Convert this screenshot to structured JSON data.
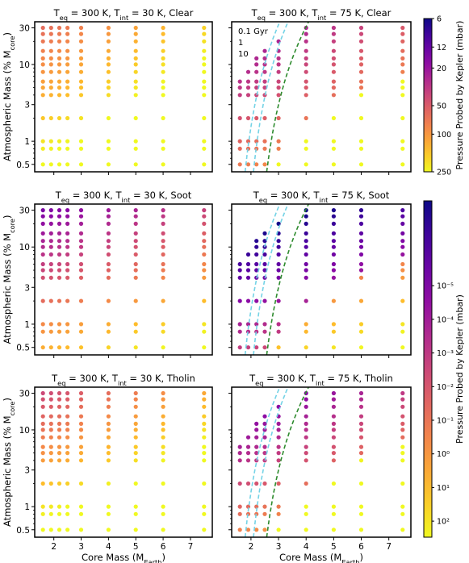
{
  "chart_data": {
    "type": "scatter",
    "xlabel": "Core Mass (M",
    "xlabel_sub": "Earth",
    "xlabel_close": ")",
    "ylabel": "Atmospheric Mass (% M",
    "ylabel_sub": "core",
    "ylabel_close": ")",
    "x_ticks": [
      "2",
      "3",
      "4",
      "5",
      "6",
      "7"
    ],
    "y_ticks": [
      "0.5",
      "1",
      "3",
      "10",
      "30"
    ],
    "xlim": [
      1.3,
      7.8
    ],
    "ylim": [
      0.4,
      36
    ],
    "y_scale": "log",
    "grid": false,
    "core_masses": [
      1.6,
      1.9,
      2.2,
      2.5,
      3.0,
      4.0,
      5.0,
      6.0,
      7.5
    ],
    "atm_masses": [
      0.5,
      0.8,
      1.0,
      2.0,
      4.0,
      5.0,
      6.0,
      8.0,
      10.0,
      12.0,
      15.0,
      20.0,
      25.0,
      30.0
    ],
    "panels": [
      {
        "title_prefix": "T",
        "teq_sub": "eq",
        "title_mid": " = 300 K, T",
        "tint_sub": "int",
        "title_suffix": " = 30 K, Clear",
        "tint": 30,
        "haze": "Clear",
        "colorbar": 0
      },
      {
        "title_prefix": "T",
        "teq_sub": "eq",
        "title_mid": " = 300 K, T",
        "tint_sub": "int",
        "title_suffix": " = 75 K, Clear",
        "tint": 75,
        "haze": "Clear",
        "colorbar": 0,
        "curves": [
          {
            "label": "0.1 Gyr",
            "color": "#74d3e6"
          },
          {
            "label": "1",
            "color": "#74d3e6"
          },
          {
            "label": "10",
            "color": "#2e8b2e"
          }
        ]
      },
      {
        "title_prefix": "T",
        "teq_sub": "eq",
        "title_mid": " = 300 K, T",
        "tint_sub": "int",
        "title_suffix": " = 30 K, Soot",
        "tint": 30,
        "haze": "Soot",
        "colorbar": 1
      },
      {
        "title_prefix": "T",
        "teq_sub": "eq",
        "title_mid": " = 300 K, T",
        "tint_sub": "int",
        "title_suffix": " = 75 K, Soot",
        "tint": 75,
        "haze": "Soot",
        "colorbar": 1,
        "curves": [
          {
            "label": "",
            "color": "#74d3e6"
          },
          {
            "label": "",
            "color": "#74d3e6"
          },
          {
            "label": "",
            "color": "#2e8b2e"
          }
        ]
      },
      {
        "title_prefix": "T",
        "teq_sub": "eq",
        "title_mid": " = 300 K, T",
        "tint_sub": "int",
        "title_suffix": " = 30 K, Tholin",
        "tint": 30,
        "haze": "Tholin",
        "colorbar": 1
      },
      {
        "title_prefix": "T",
        "teq_sub": "eq",
        "title_mid": " = 300 K, T",
        "tint_sub": "int",
        "title_suffix": " = 75 K, Tholin",
        "tint": 75,
        "haze": "Tholin",
        "colorbar": 1,
        "curves": [
          {
            "label": "",
            "color": "#74d3e6"
          },
          {
            "label": "",
            "color": "#74d3e6"
          },
          {
            "label": "",
            "color": "#2e8b2e"
          }
        ]
      }
    ],
    "colorbars": [
      {
        "label": "Pressure Probed by Kepler (mbar)",
        "scale": "log",
        "range": [
          6,
          250
        ],
        "ticks": [
          "6",
          "12",
          "20",
          "50",
          "100",
          "250"
        ],
        "tick_values": [
          6,
          12,
          20,
          50,
          100,
          250
        ],
        "reversed": true
      },
      {
        "label": "Pressure Probed by Kepler (mbar)",
        "scale": "log",
        "range": [
          3e-08,
          300
        ],
        "ticks": [
          "10⁻⁵",
          "10⁻⁴",
          "10⁻³",
          "10⁻²",
          "10⁻¹",
          "10⁰",
          "10¹",
          "10²"
        ],
        "tick_exponents": [
          -5,
          -4,
          -3,
          -2,
          -1,
          0,
          1,
          2
        ],
        "reversed": true
      }
    ],
    "colormap": "plasma"
  }
}
